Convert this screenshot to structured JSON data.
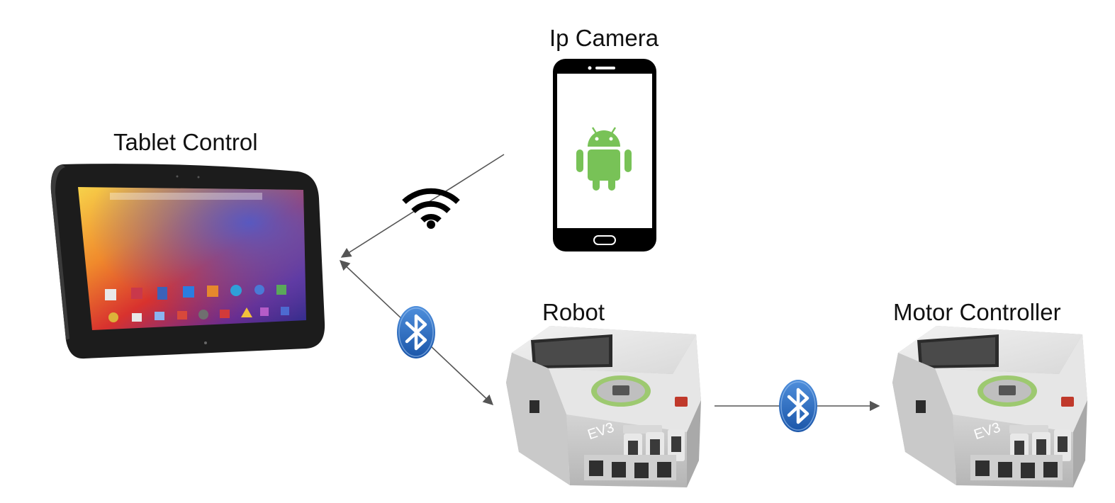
{
  "nodes": {
    "tablet": {
      "label": "Tablet Control"
    },
    "camera": {
      "label": "Ip Camera"
    },
    "robot": {
      "label": "Robot"
    },
    "motor": {
      "label": "Motor Controller"
    }
  },
  "edges": [
    {
      "from": "camera",
      "to": "tablet",
      "link": "wifi"
    },
    {
      "from": "tablet",
      "to": "robot",
      "link": "bluetooth",
      "bidirectional": true
    },
    {
      "from": "robot",
      "to": "motor",
      "link": "bluetooth"
    }
  ],
  "devices": {
    "robot_brick_text": "EV3",
    "motor_brick_text": "EV3"
  },
  "colors": {
    "connector": "#555555",
    "android_green": "#78c257",
    "bluetooth_blue": "#1c63b7",
    "brick_grey": "#c8c8c8",
    "port_grey": "#3a3a3a"
  }
}
